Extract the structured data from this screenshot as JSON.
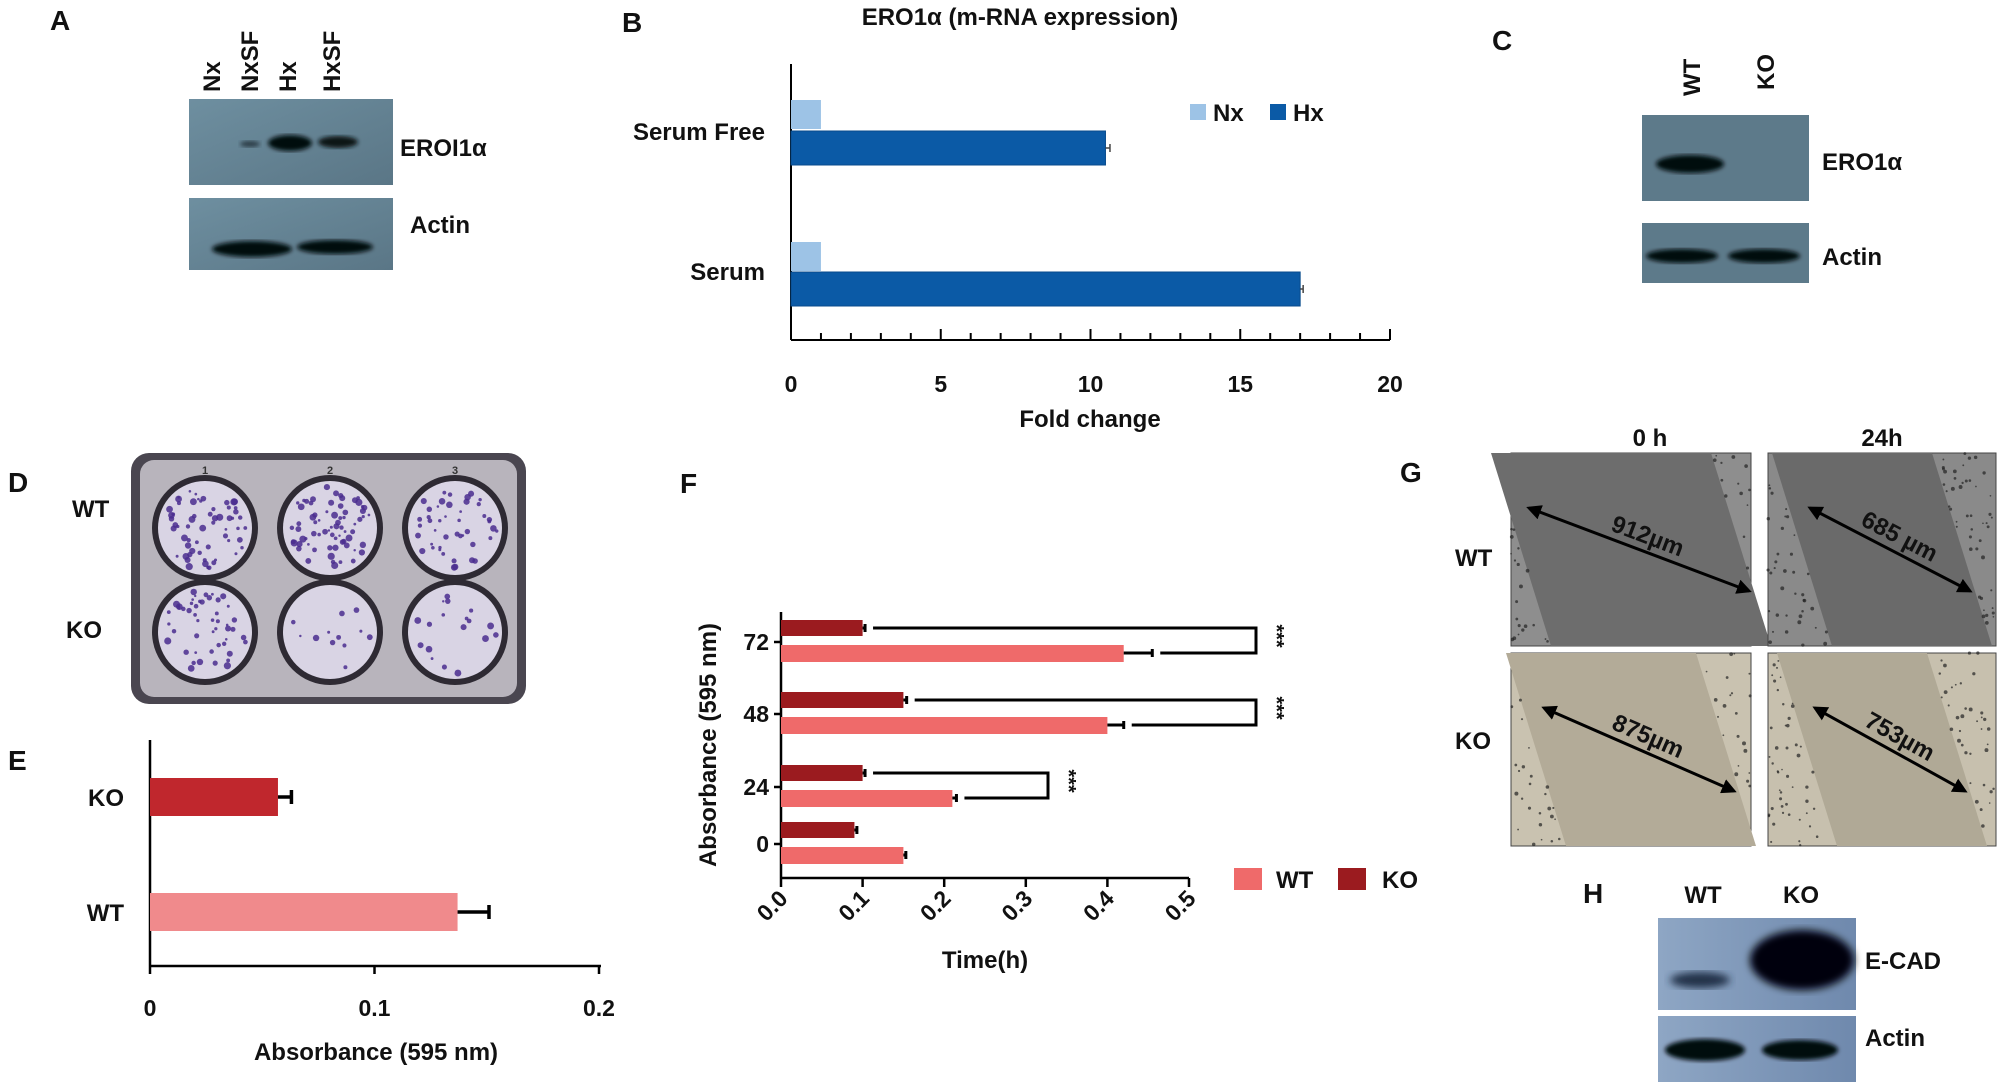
{
  "panels": {
    "A": {
      "letter": "A",
      "lanes": [
        "Nx",
        "NxSF",
        "Hx",
        "HxSF"
      ],
      "rows": [
        "EROI1α",
        "Actin"
      ]
    },
    "B": {
      "letter": "B"
    },
    "C": {
      "letter": "C",
      "lanes": [
        "WT",
        "KO"
      ],
      "rows": [
        "ERO1α",
        "Actin"
      ]
    },
    "D": {
      "letter": "D",
      "rows": [
        "WT",
        "KO"
      ],
      "well_numbers": [
        "1",
        "2",
        "3"
      ]
    },
    "E": {
      "letter": "E"
    },
    "F": {
      "letter": "F"
    },
    "G": {
      "letter": "G",
      "columns": [
        "0 h",
        "24h"
      ],
      "rows": [
        "WT",
        "KO"
      ],
      "measurements": [
        [
          "912µm",
          "685 µm"
        ],
        [
          "875µm",
          "753µm"
        ]
      ]
    },
    "H": {
      "letter": "H",
      "lanes": [
        "WT",
        "KO"
      ],
      "rows": [
        "E-CAD",
        "Actin"
      ]
    }
  },
  "colors": {
    "nx": "#9dc3e6",
    "hx": "#0b5aa6",
    "e_ko": "#c0272d",
    "e_wt": "#f08a8c",
    "f_wt": "#ef6a6a",
    "f_ko": "#9b1b1f"
  },
  "chart_data": [
    {
      "panel": "B",
      "type": "bar",
      "orientation": "horizontal",
      "title": "ERO1α (m-RNA expression)",
      "categories": [
        "Serum Free",
        "Serum"
      ],
      "series": [
        {
          "name": "Nx",
          "values": [
            1,
            1
          ]
        },
        {
          "name": "Hx",
          "values": [
            10.5,
            17
          ],
          "errors": [
            0.15,
            0.1
          ]
        }
      ],
      "xlabel": "Fold change",
      "ylabel": "",
      "xlim": [
        0,
        20
      ],
      "xticks": [
        "0",
        "5",
        "10",
        "15",
        "20"
      ],
      "legend": "top-right",
      "grid": false
    },
    {
      "panel": "E",
      "type": "bar",
      "orientation": "horizontal",
      "categories": [
        "KO",
        "WT"
      ],
      "values": [
        0.057,
        0.137
      ],
      "errors": [
        0.006,
        0.014
      ],
      "xlabel": "Absorbance (595 nm)",
      "ylabel": "",
      "xlim": [
        0,
        0.2
      ],
      "xticks": [
        "0",
        "0.1",
        "0.2"
      ],
      "grid": false
    },
    {
      "panel": "F",
      "type": "bar",
      "orientation": "horizontal",
      "categories": [
        "72",
        "48",
        "24",
        "0"
      ],
      "series": [
        {
          "name": "KO",
          "values": [
            0.1,
            0.15,
            0.1,
            0.09
          ],
          "errors": [
            0.003,
            0.004,
            0.003,
            0.003
          ]
        },
        {
          "name": "WT",
          "values": [
            0.42,
            0.4,
            0.21,
            0.15
          ],
          "errors": [
            0.035,
            0.02,
            0.005,
            0.003
          ]
        }
      ],
      "significance": [
        {
          "category": "72",
          "label": "***"
        },
        {
          "category": "48",
          "label": "***"
        },
        {
          "category": "24",
          "label": "***"
        }
      ],
      "xlabel": "Time(h)",
      "ylabel": "Absorbance (595 nm)",
      "xlim": [
        0,
        0.5
      ],
      "xticks": [
        "0.0",
        "0.1",
        "0.2",
        "0.3",
        "0.4",
        "0.5"
      ],
      "legend": "bottom-right",
      "legend_entries": [
        "WT",
        "KO"
      ],
      "grid": false
    }
  ]
}
